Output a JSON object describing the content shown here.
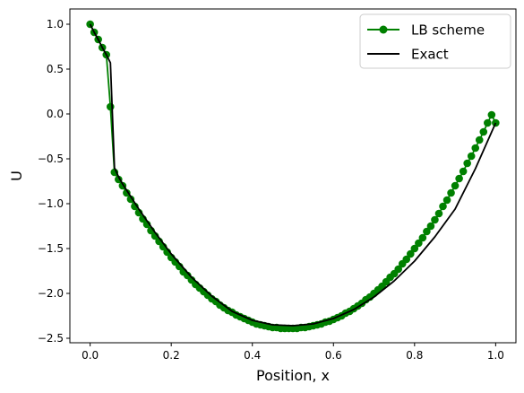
{
  "chart_data": {
    "type": "line",
    "title": "",
    "xlabel": "Position, x",
    "ylabel": "U",
    "xlim": [
      -0.05,
      1.05
    ],
    "ylim": [
      -2.55,
      1.17
    ],
    "xticks": [
      0.0,
      0.2,
      0.4,
      0.6,
      0.8,
      1.0
    ],
    "xtick_labels": [
      "0.0",
      "0.2",
      "0.4",
      "0.6",
      "0.8",
      "1.0"
    ],
    "yticks": [
      -2.5,
      -2.0,
      -1.5,
      -1.0,
      -0.5,
      0.0,
      0.5,
      1.0
    ],
    "ytick_labels": [
      "−2.5",
      "−2.0",
      "−1.5",
      "−1.0",
      "−0.5",
      "0.0",
      "0.5",
      "1.0"
    ],
    "grid": false,
    "legend_position": "top-right",
    "series": [
      {
        "name": "LB scheme",
        "color": "#008000",
        "marker": "circle",
        "x": [
          0.0,
          0.01,
          0.02,
          0.03,
          0.04,
          0.05,
          0.06,
          0.07,
          0.08,
          0.09,
          0.1,
          0.11,
          0.12,
          0.13,
          0.14,
          0.15,
          0.16,
          0.17,
          0.18,
          0.19,
          0.2,
          0.21,
          0.22,
          0.23,
          0.24,
          0.25,
          0.26,
          0.27,
          0.28,
          0.29,
          0.3,
          0.31,
          0.32,
          0.33,
          0.34,
          0.35,
          0.36,
          0.37,
          0.38,
          0.39,
          0.4,
          0.41,
          0.42,
          0.43,
          0.44,
          0.45,
          0.46,
          0.47,
          0.48,
          0.49,
          0.5,
          0.51,
          0.52,
          0.53,
          0.54,
          0.55,
          0.56,
          0.57,
          0.58,
          0.59,
          0.6,
          0.61,
          0.62,
          0.63,
          0.64,
          0.65,
          0.66,
          0.67,
          0.68,
          0.69,
          0.7,
          0.71,
          0.72,
          0.73,
          0.74,
          0.75,
          0.76,
          0.77,
          0.78,
          0.79,
          0.8,
          0.81,
          0.82,
          0.83,
          0.84,
          0.85,
          0.86,
          0.87,
          0.88,
          0.89,
          0.9,
          0.91,
          0.92,
          0.93,
          0.94,
          0.95,
          0.96,
          0.97,
          0.98,
          0.99,
          1.0
        ],
        "y": [
          1.0,
          0.91,
          0.83,
          0.74,
          0.66,
          0.08,
          -0.65,
          -0.73,
          -0.8,
          -0.88,
          -0.95,
          -1.03,
          -1.1,
          -1.17,
          -1.23,
          -1.3,
          -1.36,
          -1.42,
          -1.48,
          -1.54,
          -1.6,
          -1.65,
          -1.7,
          -1.76,
          -1.8,
          -1.85,
          -1.9,
          -1.94,
          -1.98,
          -2.02,
          -2.06,
          -2.09,
          -2.13,
          -2.16,
          -2.19,
          -2.21,
          -2.24,
          -2.26,
          -2.28,
          -2.3,
          -2.32,
          -2.34,
          -2.35,
          -2.36,
          -2.37,
          -2.38,
          -2.38,
          -2.39,
          -2.39,
          -2.39,
          -2.39,
          -2.39,
          -2.38,
          -2.38,
          -2.37,
          -2.36,
          -2.35,
          -2.34,
          -2.32,
          -2.31,
          -2.29,
          -2.27,
          -2.25,
          -2.22,
          -2.2,
          -2.17,
          -2.14,
          -2.11,
          -2.07,
          -2.04,
          -2.0,
          -1.96,
          -1.92,
          -1.87,
          -1.82,
          -1.78,
          -1.73,
          -1.67,
          -1.62,
          -1.56,
          -1.5,
          -1.44,
          -1.38,
          -1.31,
          -1.25,
          -1.18,
          -1.11,
          -1.03,
          -0.96,
          -0.88,
          -0.8,
          -0.72,
          -0.64,
          -0.55,
          -0.47,
          -0.38,
          -0.29,
          -0.2,
          -0.1,
          -0.01,
          -0.1
        ]
      },
      {
        "name": "Exact",
        "color": "#000000",
        "marker": "none",
        "x": [
          0.0,
          0.01,
          0.02,
          0.03,
          0.04,
          0.05,
          0.06,
          0.07,
          0.08,
          0.1,
          0.12,
          0.14,
          0.16,
          0.18,
          0.2,
          0.25,
          0.3,
          0.35,
          0.4,
          0.45,
          0.5,
          0.55,
          0.6,
          0.65,
          0.7,
          0.75,
          0.8,
          0.85,
          0.9,
          0.95,
          1.0
        ],
        "y": [
          1.0,
          0.91,
          0.83,
          0.74,
          0.66,
          0.57,
          -0.6,
          -0.7,
          -0.78,
          -0.92,
          -1.06,
          -1.19,
          -1.32,
          -1.44,
          -1.56,
          -1.82,
          -2.03,
          -2.2,
          -2.3,
          -2.35,
          -2.36,
          -2.34,
          -2.28,
          -2.18,
          -2.04,
          -1.86,
          -1.64,
          -1.37,
          -1.06,
          -0.61,
          -0.1
        ]
      }
    ]
  }
}
